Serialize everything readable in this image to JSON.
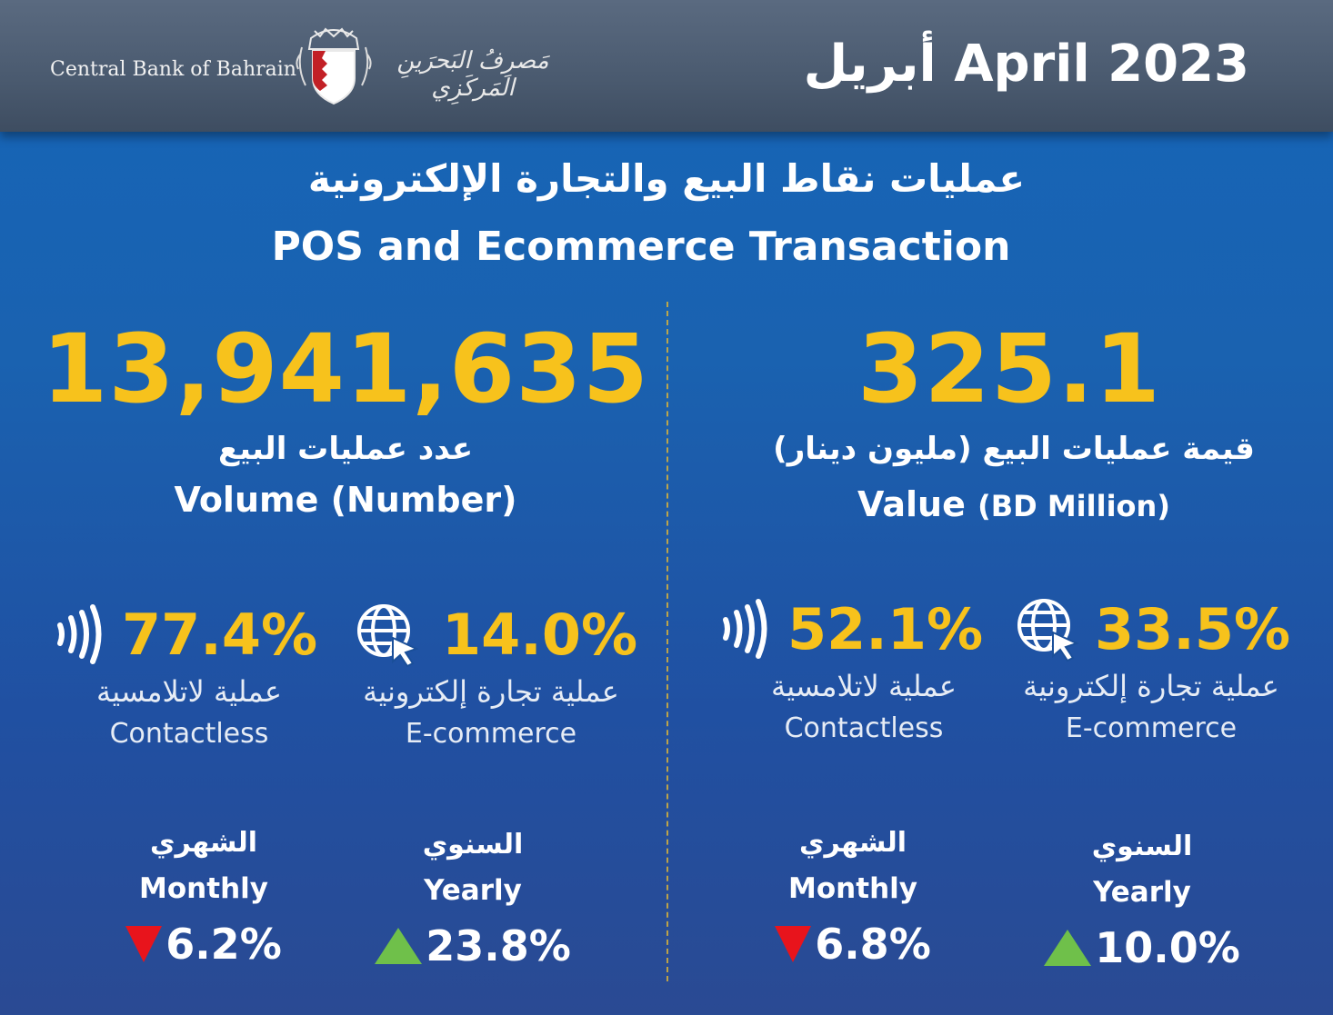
{
  "header": {
    "bank_name_en": "Central Bank of Bahrain",
    "bank_name_ar": "مَصرِفُ البَحرَينِ المَركَزِي",
    "month": "أبريل April 2023"
  },
  "title": {
    "ar": "عمليات نقاط البيع والتجارة الإلكترونية",
    "en": "POS and Ecommerce Transaction"
  },
  "volume": {
    "total": "13,941,635",
    "label_ar": "عدد عمليات البيع",
    "label_en": "Volume (Number)",
    "contactless": {
      "pct": "77.4%",
      "label_ar": "عملية لاتلامسية",
      "label_en": "Contactless",
      "icon": "contactless-icon"
    },
    "ecommerce": {
      "pct": "14.0%",
      "label_ar": "عملية تجارة إلكترونية",
      "label_en": "E-commerce",
      "icon": "globe-cursor-icon"
    },
    "monthly": {
      "label_ar": "الشهري",
      "label_en": "Monthly",
      "value": "6.2%",
      "direction": "down"
    },
    "yearly": {
      "label_ar": "السنوي",
      "label_en": "Yearly",
      "value": "23.8%",
      "direction": "up"
    }
  },
  "value": {
    "total": "325.1",
    "label_ar": "قيمة عمليات البيع (مليون دينار)",
    "label_en_main": "Value",
    "label_en_unit": "(BD Million)",
    "contactless": {
      "pct": "52.1%",
      "label_ar": "عملية لاتلامسية",
      "label_en": "Contactless",
      "icon": "contactless-icon"
    },
    "ecommerce": {
      "pct": "33.5%",
      "label_ar": "عملية تجارة إلكترونية",
      "label_en": "E-commerce",
      "icon": "globe-cursor-icon"
    },
    "monthly": {
      "label_ar": "الشهري",
      "label_en": "Monthly",
      "value": "6.8%",
      "direction": "down"
    },
    "yearly": {
      "label_ar": "السنوي",
      "label_en": "Yearly",
      "value": "10.0%",
      "direction": "up"
    }
  },
  "colors": {
    "accent_yellow": "#f7c21c",
    "down_red": "#e8141c",
    "up_green": "#6fc04a",
    "header_gray": "#4a5a6f",
    "background_blue": "#1a62b0"
  }
}
